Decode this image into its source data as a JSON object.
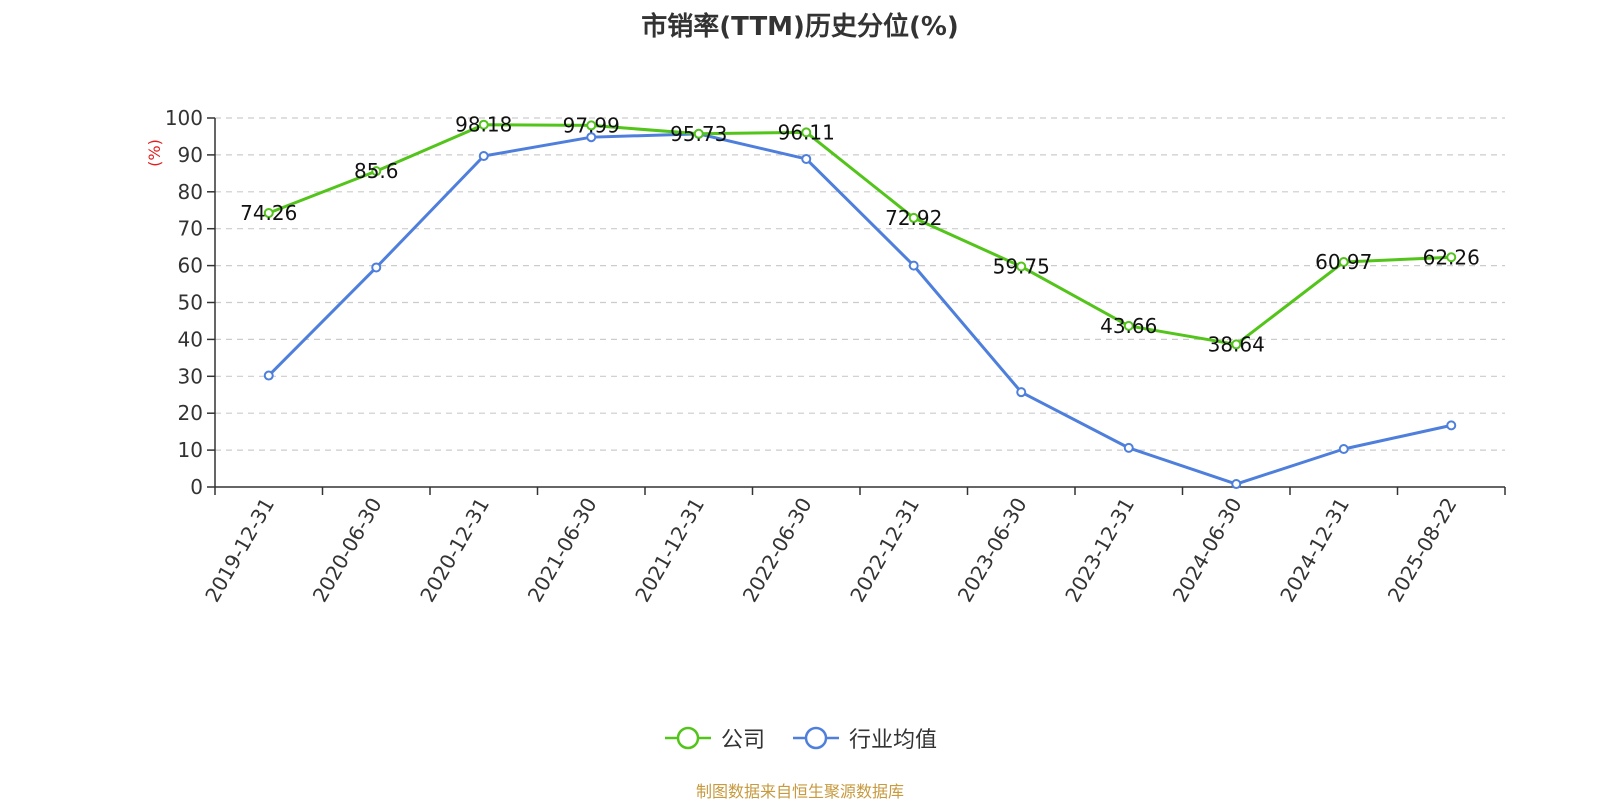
{
  "chart_data": {
    "type": "line",
    "title": "市销率(TTM)历史分位(%)",
    "ylabel": "(%)",
    "xlabel": "",
    "ylim": [
      0,
      100
    ],
    "yticks": [
      0,
      10,
      20,
      30,
      40,
      50,
      60,
      70,
      80,
      90,
      100
    ],
    "grid": true,
    "legend_position": "bottom",
    "categories": [
      "2019-12-31",
      "2020-06-30",
      "2020-12-31",
      "2021-06-30",
      "2021-12-31",
      "2022-06-30",
      "2022-12-31",
      "2023-06-30",
      "2023-12-31",
      "2024-06-30",
      "2024-12-31",
      "2025-08-22"
    ],
    "series": [
      {
        "name": "公司",
        "color": "#52c41a",
        "values": [
          74.26,
          85.6,
          98.18,
          97.99,
          95.73,
          96.11,
          72.92,
          59.75,
          43.66,
          38.64,
          60.97,
          62.26
        ],
        "labels": [
          "74.26",
          "85.6",
          "98.18",
          "97.99",
          "95.73",
          "96.11",
          "72.92",
          "59.75",
          "43.66",
          "38.64",
          "60.97",
          "62.26"
        ]
      },
      {
        "name": "行业均值",
        "color": "#4e7fdc",
        "values": [
          30.2,
          59.5,
          89.7,
          94.8,
          95.7,
          88.9,
          60.0,
          25.7,
          10.6,
          0.8,
          10.3,
          16.7
        ]
      }
    ]
  },
  "source_note": "制图数据来自恒生聚源数据库"
}
